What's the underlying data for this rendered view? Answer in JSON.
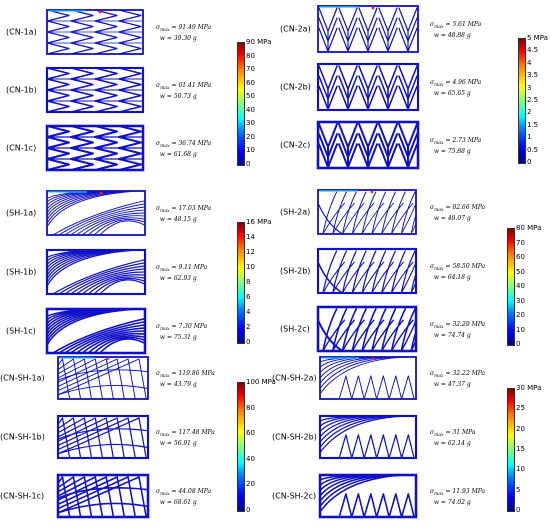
{
  "panels": [
    {
      "id": "CN-1a",
      "label": "(CN-1a)",
      "sigma": "91.49",
      "w": "39.30",
      "pattern": "cn1",
      "density": 0.35
    },
    {
      "id": "CN-1b",
      "label": "(CN-1b)",
      "sigma": "61.41",
      "w": "50.73",
      "pattern": "cn1",
      "density": 0.6
    },
    {
      "id": "CN-1c",
      "label": "(CN-1c)",
      "sigma": "36.74",
      "w": "61.68",
      "pattern": "cn1",
      "density": 0.9
    },
    {
      "id": "CN-2a",
      "label": "(CN-2a)",
      "sigma": "5.61",
      "w": "48.88",
      "pattern": "cn2",
      "density": 0.35
    },
    {
      "id": "CN-2b",
      "label": "(CN-2b)",
      "sigma": "4.96",
      "w": "65.65",
      "pattern": "cn2",
      "density": 0.6
    },
    {
      "id": "CN-2c",
      "label": "(CN-2c)",
      "sigma": "2.73",
      "w": "75.88",
      "pattern": "cn2",
      "density": 0.9
    },
    {
      "id": "SH-1a",
      "label": "(SH-1a)",
      "sigma": "17.03",
      "w": "48.15",
      "pattern": "sh1",
      "density": 0.35
    },
    {
      "id": "SH-1b",
      "label": "(SH-1b)",
      "sigma": "9.11",
      "w": "62.93",
      "pattern": "sh1",
      "density": 0.6
    },
    {
      "id": "SH-1c",
      "label": "(SH-1c)",
      "sigma": "7.30",
      "w": "75.31",
      "pattern": "sh1",
      "density": 0.9
    },
    {
      "id": "SH-2a",
      "label": "(SH-2a)",
      "sigma": "82.66",
      "w": "48.07",
      "pattern": "sh2",
      "density": 0.35
    },
    {
      "id": "SH-2b",
      "label": "(SH-2b)",
      "sigma": "58.50",
      "w": "64.18",
      "pattern": "sh2",
      "density": 0.6
    },
    {
      "id": "SH-2c",
      "label": "(SH-2c)",
      "sigma": "32.29",
      "w": "74.74",
      "pattern": "sh2",
      "density": 0.9
    },
    {
      "id": "CN-SH-1a",
      "label": "(CN-SH-1a)",
      "sigma": "119.86",
      "w": "43.79",
      "pattern": "cnsh1",
      "density": 0.35
    },
    {
      "id": "CN-SH-1b",
      "label": "(CN-SH-1b)",
      "sigma": "117.48",
      "w": "56.91",
      "pattern": "cnsh1",
      "density": 0.6
    },
    {
      "id": "CN-SH-1c",
      "label": "(CN-SH-1c)",
      "sigma": "44.08",
      "w": "68.61",
      "pattern": "cnsh1",
      "density": 0.9
    },
    {
      "id": "CN-SH-2a",
      "label": "(CN-SH-2a)",
      "sigma": "32.22",
      "w": "47.37",
      "pattern": "cnsh2",
      "density": 0.35
    },
    {
      "id": "CN-SH-2b",
      "label": "(CN-SH-2b)",
      "sigma": "31",
      "w": "62.14",
      "pattern": "cnsh2",
      "density": 0.6
    },
    {
      "id": "CN-SH-2c",
      "label": "(CN-SH-2c)",
      "sigma": "11.93",
      "w": "74.02",
      "pattern": "cnsh2",
      "density": 0.9
    }
  ],
  "formula": {
    "sigma_symbol": "σ",
    "sigma_sub": "max",
    "w_symbol": "w",
    "stress_unit": "MPa",
    "mass_unit": "g"
  },
  "colorbars": [
    {
      "id": "cb-cn1",
      "unit": "MPa",
      "ticks": [
        "90",
        "80",
        "70",
        "60",
        "50",
        "40",
        "30",
        "20",
        "10",
        "0"
      ]
    },
    {
      "id": "cb-cn2",
      "unit": "MPa",
      "ticks": [
        "5",
        "4.5",
        "4",
        "3.5",
        "3",
        "2.5",
        "2",
        "1.5",
        "1",
        "0.5",
        "0"
      ]
    },
    {
      "id": "cb-sh1",
      "unit": "MPa",
      "ticks": [
        "16",
        "14",
        "12",
        "10",
        "8",
        "6",
        "4",
        "2",
        "0"
      ]
    },
    {
      "id": "cb-sh2",
      "unit": "MPa",
      "ticks": [
        "80",
        "70",
        "60",
        "50",
        "40",
        "30",
        "20",
        "10",
        "0"
      ]
    },
    {
      "id": "cb-cnsh1",
      "unit": "MPa",
      "ticks": [
        "100",
        "80",
        "60",
        "40",
        "20",
        "0"
      ]
    },
    {
      "id": "cb-cnsh2",
      "unit": "MPa",
      "ticks": [
        "30",
        "25",
        "20",
        "15",
        "10",
        "5",
        "0"
      ]
    }
  ],
  "colors": {
    "structure": "#1010c8",
    "accent_hot": "#ff2a00",
    "accent_mid": "#20d0ff"
  }
}
